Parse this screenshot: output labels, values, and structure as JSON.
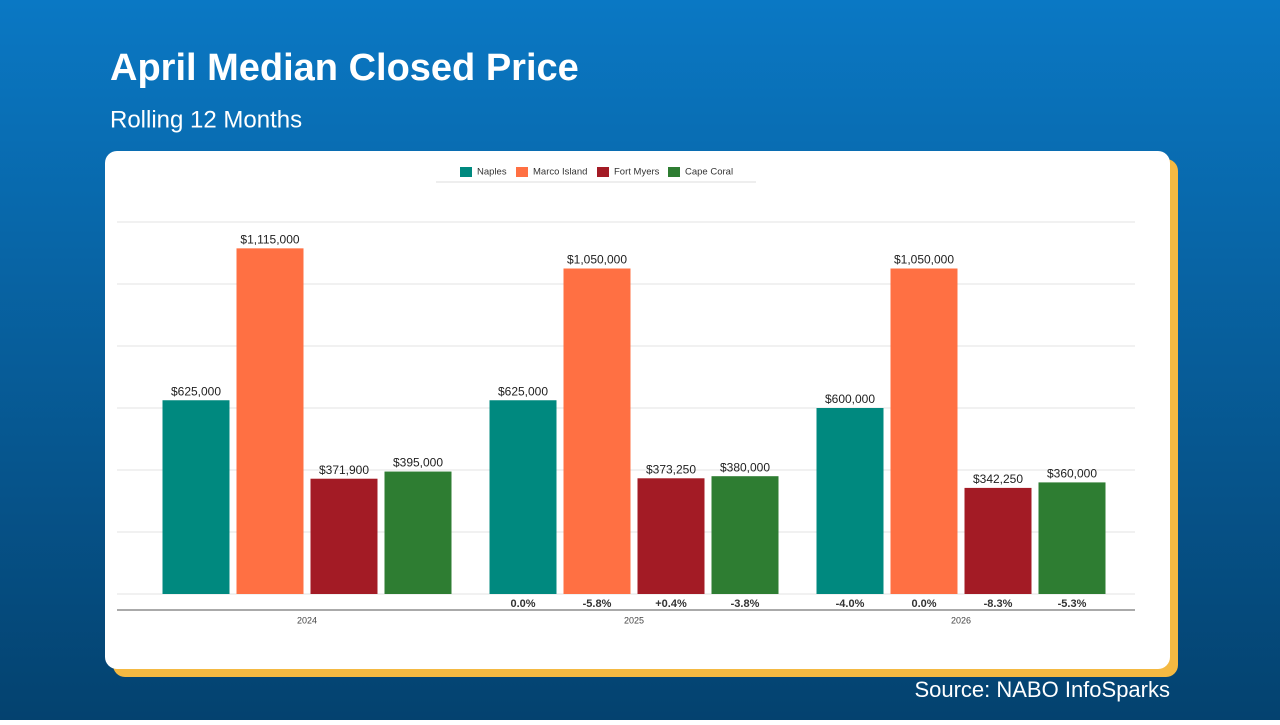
{
  "chart_data": {
    "type": "bar",
    "title": "April Median Closed Price",
    "subtitle": "Rolling 12 Months",
    "source": "Source: NABO InfoSparks",
    "categories": [
      "2024",
      "2025",
      "2026"
    ],
    "series": [
      {
        "name": "Naples",
        "color": "#00897f",
        "values": [
          625000,
          625000,
          600000
        ],
        "value_labels": [
          "$625,000",
          "$625,000",
          "$600,000"
        ],
        "change_labels": [
          null,
          "0.0%",
          "-4.0%"
        ]
      },
      {
        "name": "Marco Island",
        "color": "#ff7043",
        "values": [
          1115000,
          1050000,
          1050000
        ],
        "value_labels": [
          "$1,115,000",
          "$1,050,000",
          "$1,050,000"
        ],
        "change_labels": [
          null,
          "-5.8%",
          "0.0%"
        ]
      },
      {
        "name": "Fort Myers",
        "color": "#a31b25",
        "values": [
          371900,
          373250,
          342250
        ],
        "value_labels": [
          "$371,900",
          "$373,250",
          "$342,250"
        ],
        "change_labels": [
          null,
          "+0.4%",
          "-8.3%"
        ]
      },
      {
        "name": "Cape Coral",
        "color": "#2e7d32",
        "values": [
          395000,
          380000,
          360000
        ],
        "value_labels": [
          "$395,000",
          "$380,000",
          "$360,000"
        ],
        "change_labels": [
          null,
          "-3.8%",
          "-5.3%"
        ]
      }
    ],
    "ylim": [
      0,
      1200000
    ],
    "yticks": [
      0,
      200000,
      400000,
      600000,
      800000,
      1000000,
      1200000
    ],
    "grid": true
  }
}
